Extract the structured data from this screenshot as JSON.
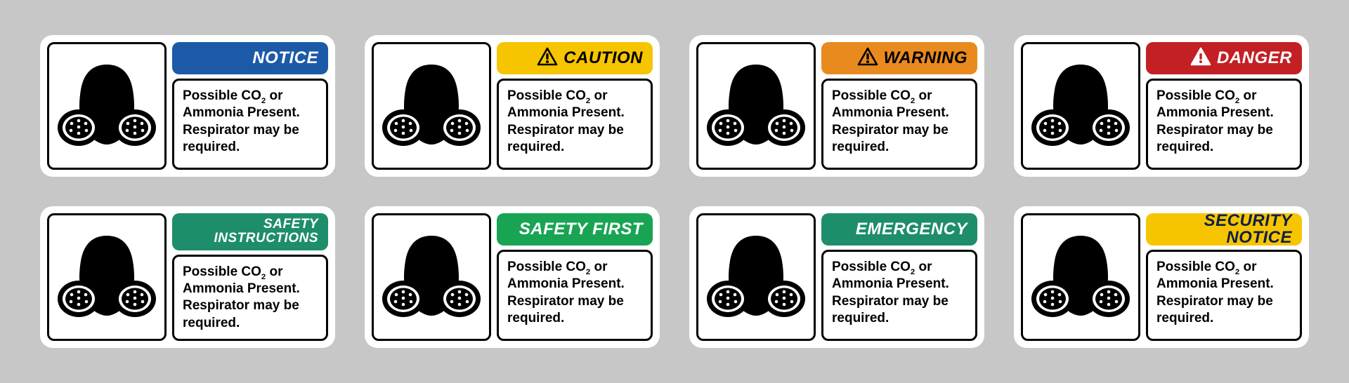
{
  "body_text": {
    "line1_prefix": "Possible CO",
    "line1_sub": "2",
    "line1_suffix": " or",
    "line2": "Ammonia Present.",
    "line3": "Respirator may be",
    "line4": "required."
  },
  "colors": {
    "background": "#c7c7c8",
    "sign_bg": "#ffffff",
    "border": "#000000",
    "text": "#000000"
  },
  "signs": [
    {
      "id": "notice",
      "label": "NOTICE",
      "bg": "#1c5aa8",
      "fg": "#ffffff",
      "triangle": false,
      "two_line": false
    },
    {
      "id": "caution",
      "label": "CAUTION",
      "bg": "#f6c500",
      "fg": "#000000",
      "triangle": true,
      "tri_stroke": "#000000",
      "tri_fill": "none",
      "tri_mark": "#000000",
      "two_line": false
    },
    {
      "id": "warning",
      "label": "WARNING",
      "bg": "#e98a1f",
      "fg": "#000000",
      "triangle": true,
      "tri_stroke": "#000000",
      "tri_fill": "none",
      "tri_mark": "#000000",
      "two_line": false
    },
    {
      "id": "danger",
      "label": "DANGER",
      "bg": "#c32025",
      "fg": "#ffffff",
      "triangle": true,
      "tri_stroke": "#ffffff",
      "tri_fill": "#ffffff",
      "tri_mark": "#c32025",
      "two_line": false
    },
    {
      "id": "safety-instructions",
      "label": "SAFETY\nINSTRUCTIONS",
      "bg": "#1e8d6b",
      "fg": "#ffffff",
      "triangle": false,
      "two_line": true
    },
    {
      "id": "safety-first",
      "label": "SAFETY FIRST",
      "bg": "#19a454",
      "fg": "#ffffff",
      "triangle": false,
      "two_line": false
    },
    {
      "id": "emergency",
      "label": "EMERGENCY",
      "bg": "#1e8d6b",
      "fg": "#ffffff",
      "triangle": false,
      "two_line": false
    },
    {
      "id": "security-notice",
      "label": "SECURITY NOTICE",
      "bg": "#f6c500",
      "fg": "#0f1f4b",
      "triangle": false,
      "two_line": false
    }
  ]
}
